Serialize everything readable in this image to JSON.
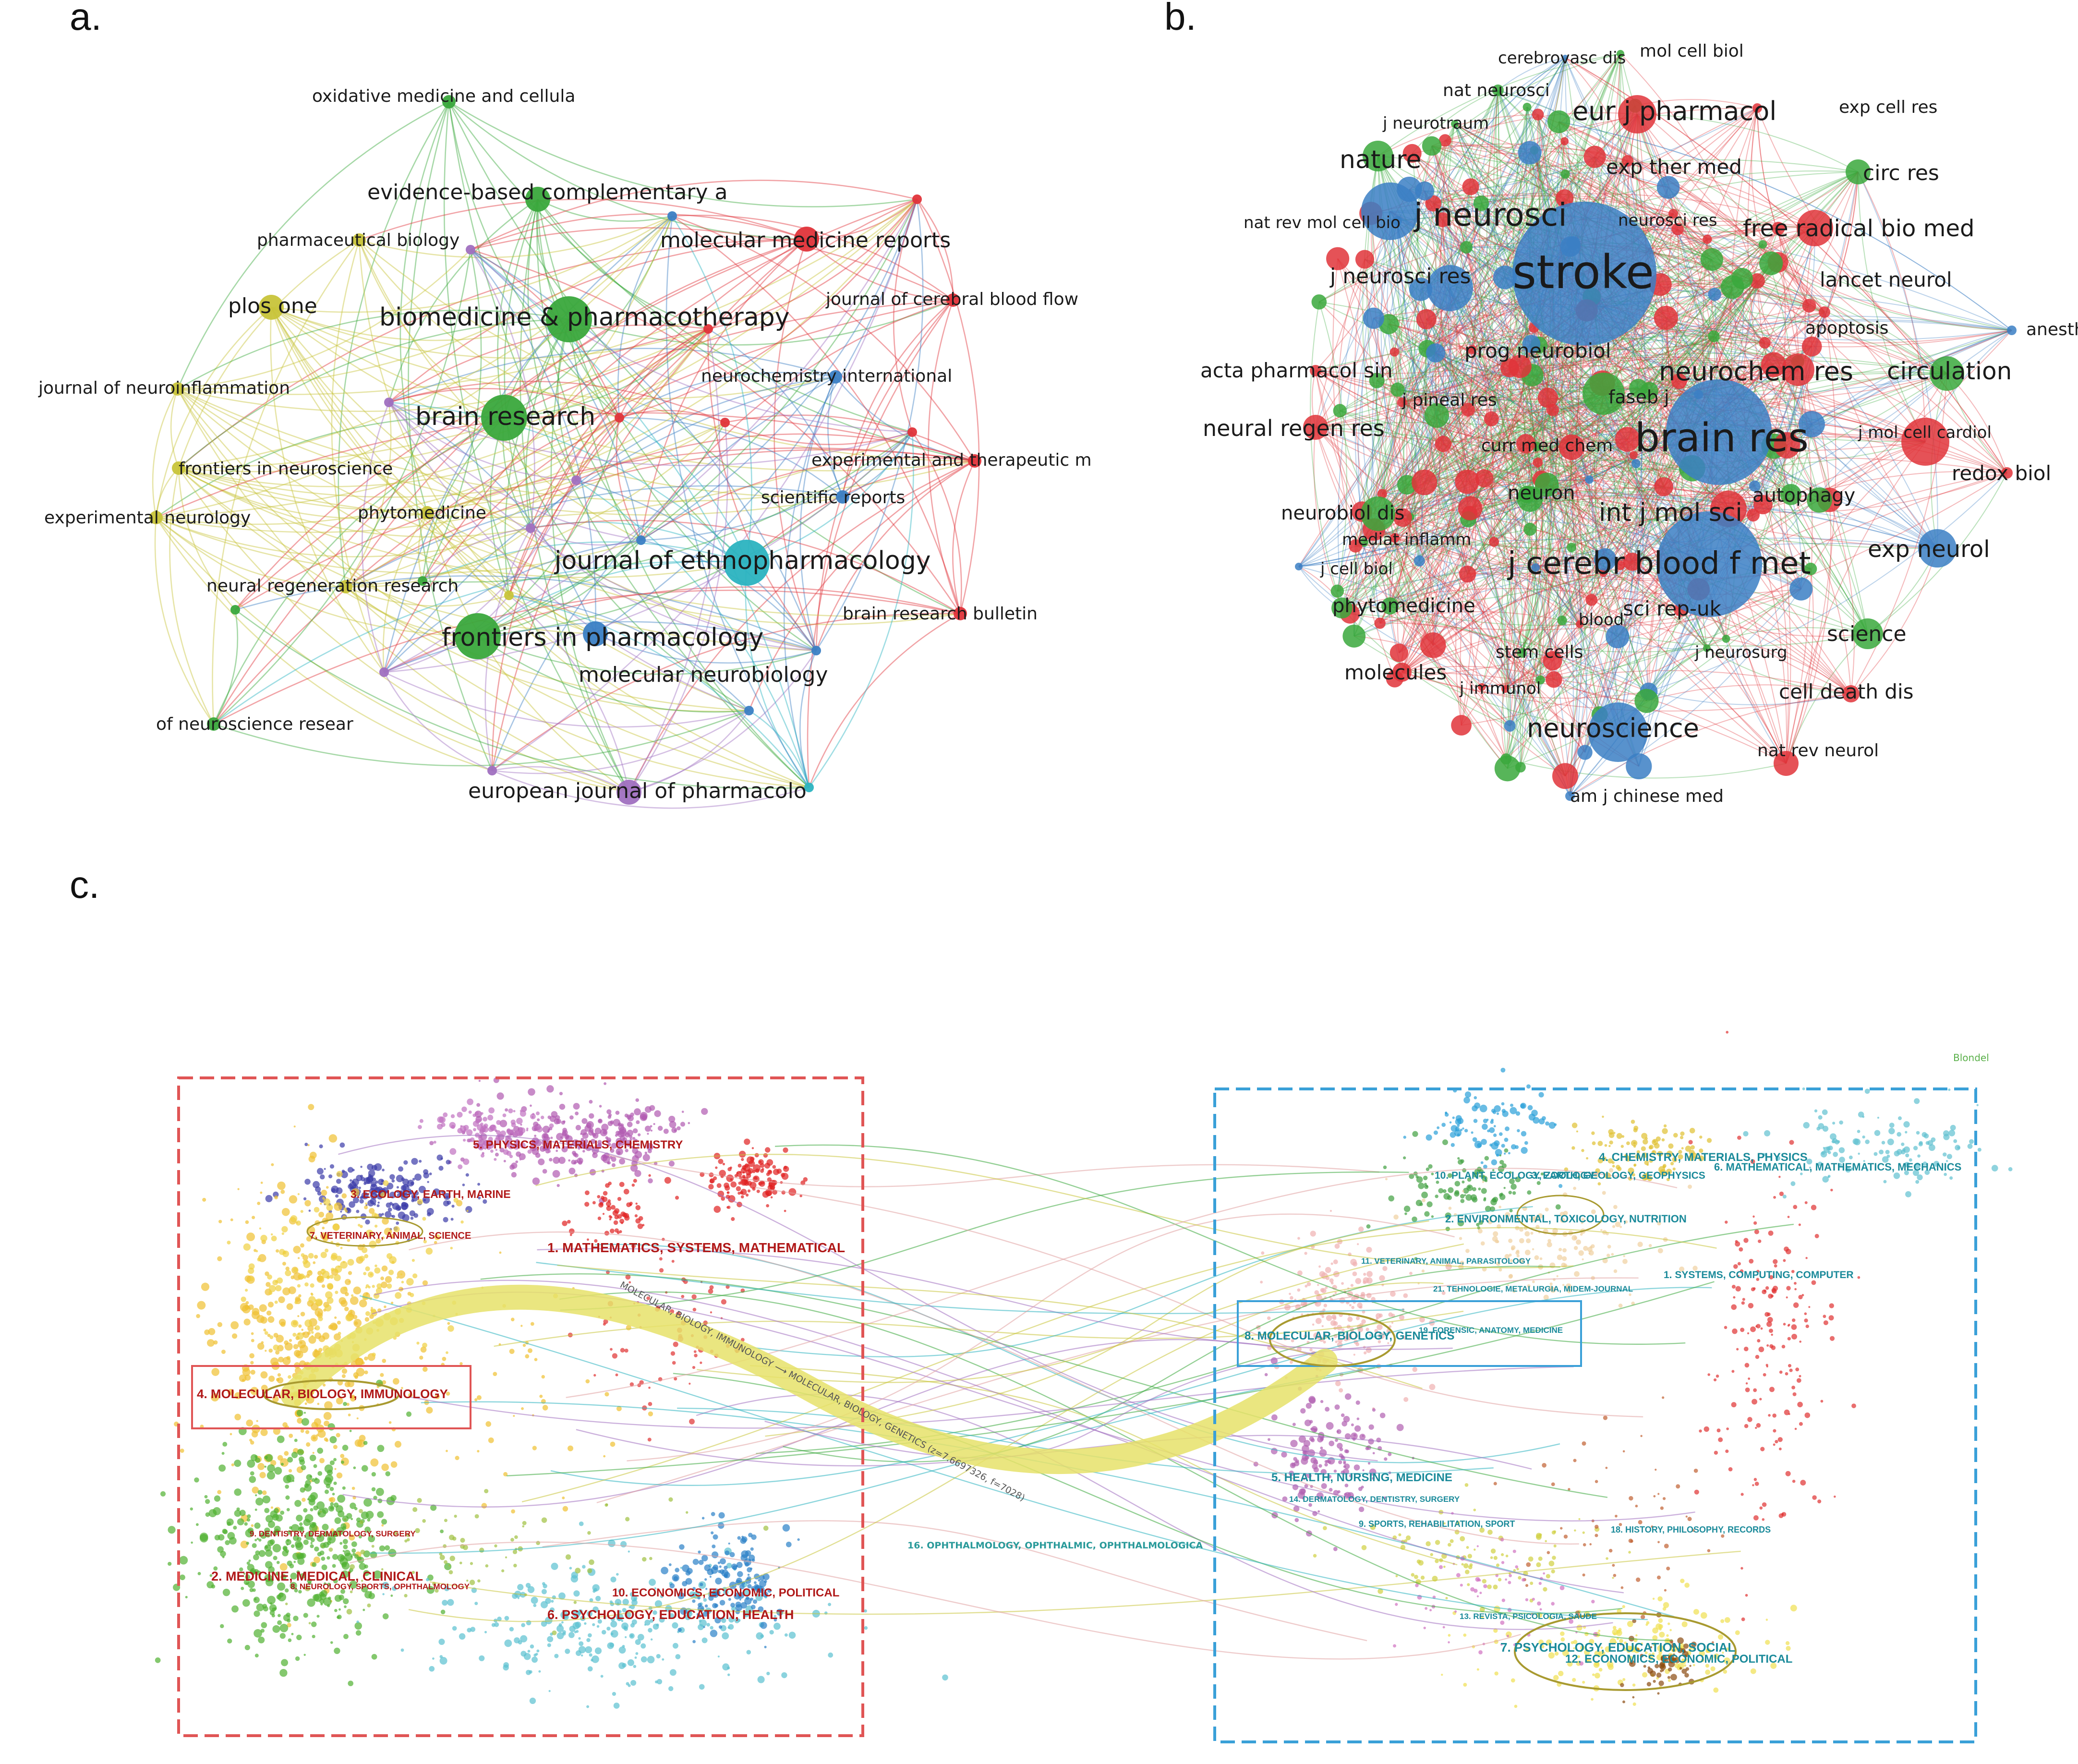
{
  "panels": {
    "a": {
      "letter": "a.",
      "nodes": [
        {
          "label": "oxidative medicine and cellula",
          "cluster": "green",
          "size": "s"
        },
        {
          "label": "evidence-based complementary a",
          "cluster": "green",
          "size": "m"
        },
        {
          "label": "molecular medicine reports",
          "cluster": "red",
          "size": "m"
        },
        {
          "label": "pharmaceutical biology",
          "cluster": "yellow",
          "size": "s"
        },
        {
          "label": "plos one",
          "cluster": "yellow",
          "size": "m"
        },
        {
          "label": "biomedicine & pharmacotherapy",
          "cluster": "green",
          "size": "l"
        },
        {
          "label": "journal of cerebral blood flow",
          "cluster": "red",
          "size": "s"
        },
        {
          "label": "journal of neuroinflammation",
          "cluster": "yellow",
          "size": "s"
        },
        {
          "label": "neurochemistry international",
          "cluster": "blue",
          "size": "s"
        },
        {
          "label": "brain research",
          "cluster": "green",
          "size": "l"
        },
        {
          "label": "frontiers in neuroscience",
          "cluster": "yellow",
          "size": "s"
        },
        {
          "label": "experimental and therapeutic m",
          "cluster": "red",
          "size": "s"
        },
        {
          "label": "scientific reports",
          "cluster": "blue",
          "size": "s"
        },
        {
          "label": "experimental neurology",
          "cluster": "yellow",
          "size": "s"
        },
        {
          "label": "phytomedicine",
          "cluster": "yellow",
          "size": "s"
        },
        {
          "label": "journal of ethnopharmacology",
          "cluster": "cyan",
          "size": "l"
        },
        {
          "label": "neural regeneration research",
          "cluster": "yellow",
          "size": "s"
        },
        {
          "label": "brain research bulletin",
          "cluster": "red",
          "size": "s"
        },
        {
          "label": "frontiers in pharmacology",
          "cluster": "green",
          "size": "l"
        },
        {
          "label": "molecular neurobiology",
          "cluster": "blue",
          "size": "m"
        },
        {
          "label": "of neuroscience resear",
          "cluster": "green",
          "size": "s"
        },
        {
          "label": "european journal of pharmacolo",
          "cluster": "purple",
          "size": "m"
        }
      ]
    },
    "b": {
      "letter": "b.",
      "nodes": [
        {
          "label": "cerebrovasc dis",
          "cluster": "blue"
        },
        {
          "label": "mol cell biol",
          "cluster": "green"
        },
        {
          "label": "nat neurosci",
          "cluster": "green"
        },
        {
          "label": "eur j pharmacol",
          "cluster": "red"
        },
        {
          "label": "exp cell res",
          "cluster": "red"
        },
        {
          "label": "j neurotraum",
          "cluster": "green"
        },
        {
          "label": "nature",
          "cluster": "green"
        },
        {
          "label": "exp ther med",
          "cluster": "red"
        },
        {
          "label": "circ res",
          "cluster": "green"
        },
        {
          "label": "nat rev mol cell bio",
          "cluster": "blue"
        },
        {
          "label": "j neurosci",
          "cluster": "blue"
        },
        {
          "label": "neurosci res",
          "cluster": "red"
        },
        {
          "label": "free radical bio med",
          "cluster": "red"
        },
        {
          "label": "stroke",
          "cluster": "blue"
        },
        {
          "label": "j neurosci res",
          "cluster": "blue"
        },
        {
          "label": "lancet neurol",
          "cluster": "red"
        },
        {
          "label": "apoptosis",
          "cluster": "red"
        },
        {
          "label": "anesthesiology",
          "cluster": "blue"
        },
        {
          "label": "prog neurobiol",
          "cluster": "blue"
        },
        {
          "label": "acta pharmacol sin",
          "cluster": "red"
        },
        {
          "label": "neurochem res",
          "cluster": "red"
        },
        {
          "label": "circulation",
          "cluster": "green"
        },
        {
          "label": "j pineal res",
          "cluster": "red"
        },
        {
          "label": "faseb j",
          "cluster": "green"
        },
        {
          "label": "neural regen res",
          "cluster": "red"
        },
        {
          "label": "brain res",
          "cluster": "blue"
        },
        {
          "label": "j mol cell cardiol",
          "cluster": "red"
        },
        {
          "label": "curr med chem",
          "cluster": "green"
        },
        {
          "label": "redox biol",
          "cluster": "red"
        },
        {
          "label": "neuron",
          "cluster": "green"
        },
        {
          "label": "autophagy",
          "cluster": "green"
        },
        {
          "label": "neurobiol dis",
          "cluster": "green"
        },
        {
          "label": "int j mol sci",
          "cluster": "red"
        },
        {
          "label": "mediat inflamm",
          "cluster": "red"
        },
        {
          "label": "exp neurol",
          "cluster": "blue"
        },
        {
          "label": "j cerebr blood f met",
          "cluster": "blue"
        },
        {
          "label": "j cell biol",
          "cluster": "blue"
        },
        {
          "label": "phytomedicine",
          "cluster": "green"
        },
        {
          "label": "blood",
          "cluster": "red"
        },
        {
          "label": "sci rep-uk",
          "cluster": "red"
        },
        {
          "label": "science",
          "cluster": "green"
        },
        {
          "label": "j neurosurg",
          "cluster": "green"
        },
        {
          "label": "stem cells",
          "cluster": "green"
        },
        {
          "label": "molecules",
          "cluster": "red"
        },
        {
          "label": "j immunol",
          "cluster": "red"
        },
        {
          "label": "cell death dis",
          "cluster": "red"
        },
        {
          "label": "neuroscience",
          "cluster": "blue"
        },
        {
          "label": "nat rev neurol",
          "cluster": "red"
        },
        {
          "label": "am j chinese med",
          "cluster": "blue"
        }
      ]
    },
    "c": {
      "letter": "c.",
      "watermark": "Blondel",
      "left_clusters": [
        "5. PHYSICS, MATERIALS, CHEMISTRY",
        "3. ECOLOGY, EARTH, MARINE",
        "7. VETERINARY, ANIMAL, SCIENCE",
        "1. MATHEMATICS, SYSTEMS, MATHEMATICAL",
        "4. MOLECULAR, BIOLOGY, IMMUNOLOGY",
        "9. DENTISTRY, DERMATOLOGY, SURGERY",
        "2. MEDICINE, MEDICAL, CLINICAL",
        "8. NEUROLOGY, SPORTS, OPHTHALMOLOGY",
        "10. ECONOMICS, ECONOMIC, POLITICAL",
        "6. PSYCHOLOGY, EDUCATION, HEALTH"
      ],
      "right_clusters": [
        "4. CHEMISTRY, MATERIALS, PHYSICS",
        "6. MATHEMATICAL, MATHEMATICS, MECHANICS",
        "10. PLANT, ECOLOGY, ZOOLOGY",
        "3. EARTH, GEOLOGY, GEOPHYSICS",
        "2. ENVIRONMENTAL, TOXICOLOGY, NUTRITION",
        "11. VETERINARY, ANIMAL, PARASITOLOGY",
        "21. TEHNOLOGIE, METALURGIA, MIDEM-JOURNAL",
        "1. SYSTEMS, COMPUTING, COMPUTER",
        "8. MOLECULAR, BIOLOGY, GENETICS",
        "19. FORENSIC, ANATOMY, MEDICINE",
        "5. HEALTH, NURSING, MEDICINE",
        "14. DERMATOLOGY, DENTISTRY, SURGERY",
        "9. SPORTS, REHABILITATION, SPORT",
        "18. HISTORY, PHILOSOPHY, RECORDS",
        "13. REVISTA, PSICOLOGIA, SAUDE",
        "7. PSYCHOLOGY, EDUCATION, SOCIAL",
        "12. ECONOMICS, ECONOMIC, POLITICAL"
      ],
      "middle_label": "16. OPHTHALMOLOGY, OPHTHALMIC, OPHTHALMOLOGICA",
      "flow_label": "MOLECULAR, BIOLOGY, IMMUNOLOGY ⟶ MOLECULAR, BIOLOGY, GENETICS (z=7.6697326, f=7028)"
    }
  },
  "colors": {
    "red": "#e0343a",
    "green": "#3aa83c",
    "blue": "#3b7fc4",
    "yellow": "#c8c43a",
    "purple": "#a070c0",
    "cyan": "#2bb3c0",
    "left_box": "#e05555",
    "right_box": "#3aa0d8",
    "dark_red_text": "#b01818",
    "teal_text": "#1a8a9a",
    "flow": "#e6e26a"
  }
}
